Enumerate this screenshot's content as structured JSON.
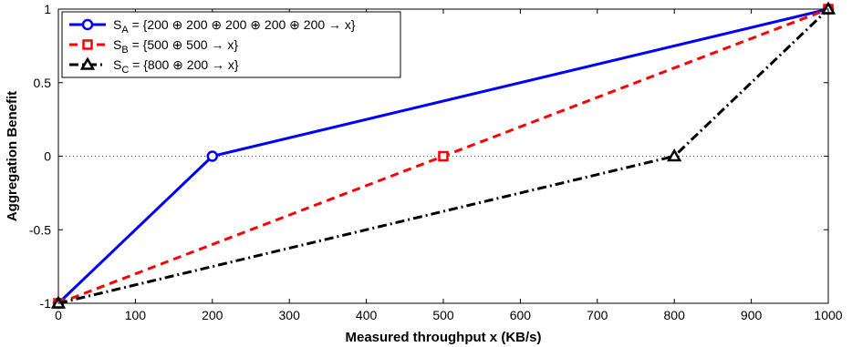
{
  "chart_data": {
    "type": "line",
    "title": "",
    "xlabel": "Measured throughput x (KB/s)",
    "ylabel": "Aggregation Benefit",
    "xlim": [
      0,
      1000
    ],
    "ylim": [
      -1,
      1
    ],
    "xticks": [
      "0",
      "100",
      "200",
      "300",
      "400",
      "500",
      "600",
      "700",
      "800",
      "900",
      "1000"
    ],
    "yticks": [
      "-1",
      "-0.5",
      "0",
      "0.5",
      "1"
    ],
    "grid": false,
    "reference_line": {
      "y": 0,
      "style": "dotted"
    },
    "legend_position": "top-left",
    "series": [
      {
        "name": "S",
        "subscript": "A",
        "name_suffix": " = {200 ⊕ 200 ⊕ 200 ⊕ 200 ⊕ 200 → x}",
        "color": "#0000ff",
        "line_style": "solid",
        "marker": "circle",
        "x": [
          0,
          200,
          1000
        ],
        "y": [
          -1,
          0,
          1
        ]
      },
      {
        "name": "S",
        "subscript": "B",
        "name_suffix": " = {500 ⊕ 500 → x}",
        "color": "#ff0000",
        "line_style": "dashed",
        "marker": "square",
        "x": [
          0,
          500,
          1000
        ],
        "y": [
          -1,
          0,
          1
        ]
      },
      {
        "name": "S",
        "subscript": "C",
        "name_suffix": " = {800 ⊕ 200 → x}",
        "color": "#000000",
        "line_style": "dashdot",
        "marker": "triangle",
        "x": [
          0,
          800,
          1000
        ],
        "y": [
          -1,
          0,
          1
        ]
      }
    ]
  }
}
